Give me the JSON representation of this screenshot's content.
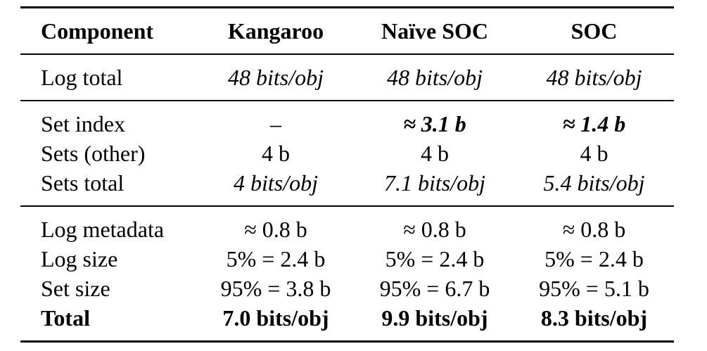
{
  "table": {
    "headers": [
      "Component",
      "Kangaroo",
      "Naïve SOC",
      "SOC"
    ],
    "rows": [
      {
        "label": "Log total",
        "cells": [
          "48 bits/obj",
          "48 bits/obj",
          "48 bits/obj"
        ]
      },
      {
        "label": "Set index",
        "cells": [
          "–",
          "≈ 3.1 b",
          "≈ 1.4 b"
        ]
      },
      {
        "label": "Sets (other)",
        "cells": [
          "4 b",
          "4 b",
          "4 b"
        ]
      },
      {
        "label": "Sets total",
        "cells": [
          "4 bits/obj",
          "7.1 bits/obj",
          "5.4 bits/obj"
        ]
      },
      {
        "label": "Log metadata",
        "cells": [
          "≈ 0.8 b",
          "≈ 0.8 b",
          "≈ 0.8 b"
        ]
      },
      {
        "label": "Log size",
        "cells": [
          "5% = 2.4 b",
          "5% = 2.4 b",
          "5% = 2.4 b"
        ]
      },
      {
        "label": "Set size",
        "cells": [
          "95% = 3.8 b",
          "95% = 6.7 b",
          "95% = 5.1 b"
        ]
      },
      {
        "label": "Total",
        "cells": [
          "7.0 bits/obj",
          "9.9 bits/obj",
          "8.3 bits/obj"
        ]
      }
    ]
  }
}
